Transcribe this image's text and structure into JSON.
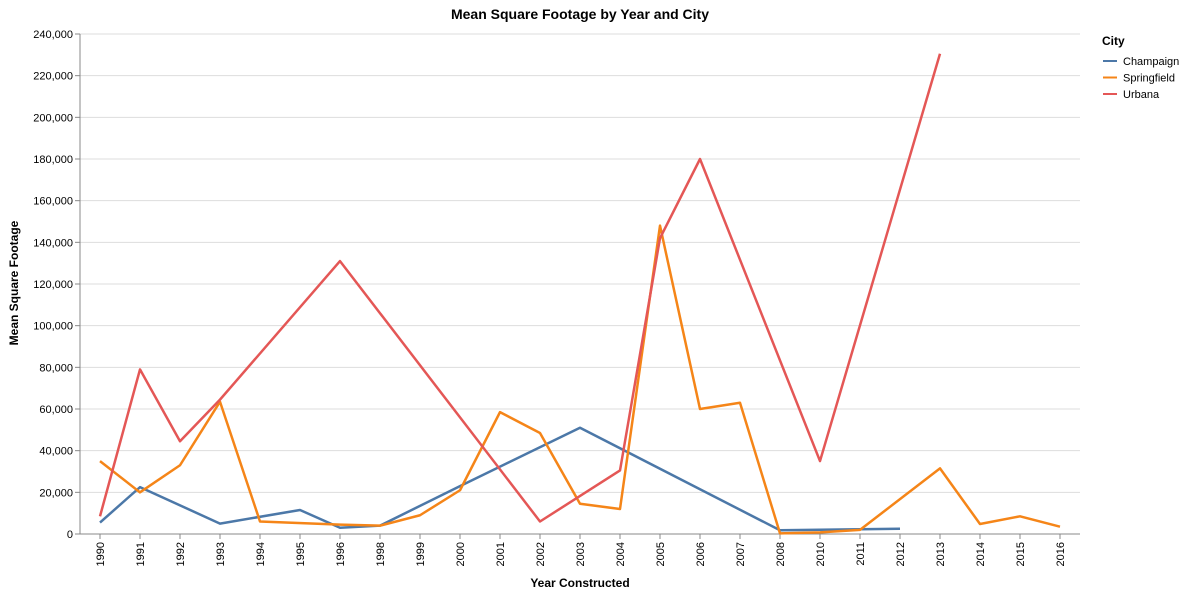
{
  "chart_data": {
    "type": "line",
    "title": "Mean Square Footage by Year and City",
    "xlabel": "Year Constructed",
    "ylabel": "Mean Square Footage",
    "x_scale": "ordinal",
    "categories": [
      "1990",
      "1991",
      "1992",
      "1993",
      "1994",
      "1995",
      "1996",
      "1998",
      "1999",
      "2000",
      "2001",
      "2002",
      "2003",
      "2004",
      "2005",
      "2006",
      "2007",
      "2008",
      "2010",
      "2011",
      "2012",
      "2013",
      "2014",
      "2015",
      "2016"
    ],
    "ylim": [
      0,
      240000
    ],
    "y_ticks": [
      0,
      20000,
      40000,
      60000,
      80000,
      100000,
      120000,
      140000,
      160000,
      180000,
      200000,
      220000,
      240000
    ],
    "y_tick_labels": [
      "0",
      "20,000",
      "40,000",
      "60,000",
      "80,000",
      "100,000",
      "120,000",
      "140,000",
      "160,000",
      "180,000",
      "200,000",
      "220,000",
      "240,000"
    ],
    "grid": "horizontal",
    "legend_title": "City",
    "legend_position": "right",
    "series": [
      {
        "name": "Champaign",
        "color": "#4c78a8",
        "points": [
          {
            "x": "1990",
            "y": 5500
          },
          {
            "x": "1991",
            "y": 22500
          },
          {
            "x": "1993",
            "y": 5000
          },
          {
            "x": "1995",
            "y": 11500
          },
          {
            "x": "1996",
            "y": 3000
          },
          {
            "x": "1998",
            "y": 4000
          },
          {
            "x": "2000",
            "y": 23000
          },
          {
            "x": "2003",
            "y": 51000
          },
          {
            "x": "2008",
            "y": 1800
          },
          {
            "x": "2011",
            "y": 2300
          },
          {
            "x": "2012",
            "y": 2500
          }
        ]
      },
      {
        "name": "Springfield",
        "color": "#f58518",
        "points": [
          {
            "x": "1990",
            "y": 35000
          },
          {
            "x": "1991",
            "y": 20000
          },
          {
            "x": "1992",
            "y": 33000
          },
          {
            "x": "1993",
            "y": 63500
          },
          {
            "x": "1994",
            "y": 6000
          },
          {
            "x": "1996",
            "y": 4500
          },
          {
            "x": "1998",
            "y": 4000
          },
          {
            "x": "1999",
            "y": 9000
          },
          {
            "x": "2000",
            "y": 21000
          },
          {
            "x": "2001",
            "y": 58500
          },
          {
            "x": "2002",
            "y": 48500
          },
          {
            "x": "2003",
            "y": 14500
          },
          {
            "x": "2004",
            "y": 12000
          },
          {
            "x": "2005",
            "y": 148000
          },
          {
            "x": "2006",
            "y": 60000
          },
          {
            "x": "2007",
            "y": 63000
          },
          {
            "x": "2008",
            "y": 300
          },
          {
            "x": "2010",
            "y": 800
          },
          {
            "x": "2011",
            "y": 2000
          },
          {
            "x": "2013",
            "y": 31500
          },
          {
            "x": "2014",
            "y": 4800
          },
          {
            "x": "2015",
            "y": 8500
          },
          {
            "x": "2016",
            "y": 3500
          }
        ]
      },
      {
        "name": "Urbana",
        "color": "#e45756",
        "points": [
          {
            "x": "1990",
            "y": 8500
          },
          {
            "x": "1991",
            "y": 79000
          },
          {
            "x": "1992",
            "y": 44500
          },
          {
            "x": "1993",
            "y": 64500
          },
          {
            "x": "1996",
            "y": 131000
          },
          {
            "x": "2002",
            "y": 6000
          },
          {
            "x": "2004",
            "y": 30500
          },
          {
            "x": "2005",
            "y": 142000
          },
          {
            "x": "2006",
            "y": 180000
          },
          {
            "x": "2010",
            "y": 35000
          },
          {
            "x": "2013",
            "y": 230500
          }
        ]
      }
    ]
  }
}
